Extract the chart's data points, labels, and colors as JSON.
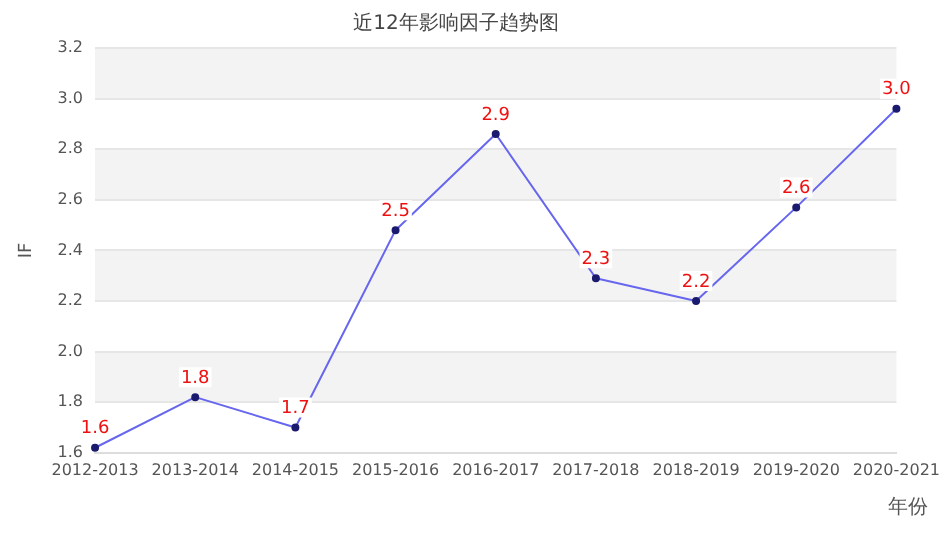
{
  "chart_data": {
    "type": "line",
    "title": "近12年影响因子趋势图",
    "xlabel": "年份",
    "ylabel": "IF",
    "categories": [
      "2012-2013",
      "2013-2014",
      "2014-2015",
      "2015-2016",
      "2016-2017",
      "2017-2018",
      "2018-2019",
      "2019-2020",
      "2020-2021"
    ],
    "series": [
      {
        "color": "#6666ee",
        "values": [
          1.62,
          1.82,
          1.7,
          2.48,
          2.86,
          2.29,
          2.2,
          2.57,
          2.96
        ],
        "value_labels": [
          "1.6",
          "1.8",
          "1.7",
          "2.5",
          "2.9",
          "2.3",
          "2.2",
          "2.6",
          "3.0"
        ]
      }
    ],
    "ylim": [
      1.6,
      3.2
    ],
    "yticks": [
      1.6,
      1.8,
      {
        "value": 2,
        "label": "2.0"
      },
      2.2,
      2.4,
      2.6,
      2.8,
      {
        "value": 3,
        "label": "3.0"
      },
      3.2
    ],
    "grid": "y",
    "legend": false,
    "marker": "circle",
    "line_style": "solid"
  }
}
